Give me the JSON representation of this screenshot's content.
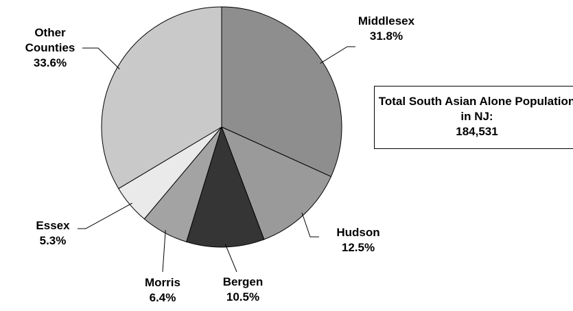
{
  "chart_data": {
    "type": "pie",
    "categories": [
      "Middlesex",
      "Hudson",
      "Bergen",
      "Morris",
      "Essex",
      "Other Counties"
    ],
    "values": [
      31.8,
      12.5,
      10.5,
      6.4,
      5.3,
      33.6
    ],
    "value_labels": [
      "31.8%",
      "12.5%",
      "10.5%",
      "6.4%",
      "5.3%",
      "33.6%"
    ],
    "colors": [
      "#8e8e8e",
      "#9a9a9a",
      "#353535",
      "#a3a3a3",
      "#eaeaea",
      "#c9c9c9"
    ],
    "annotation": {
      "text": "Total South Asian Alone Population in NJ:",
      "value": "184,531"
    }
  }
}
